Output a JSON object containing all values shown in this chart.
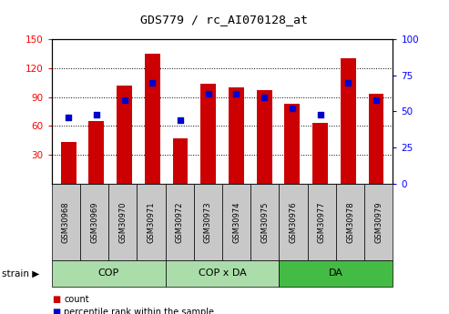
{
  "title": "GDS779 / rc_AI070128_at",
  "categories": [
    "GSM30968",
    "GSM30969",
    "GSM30970",
    "GSM30971",
    "GSM30972",
    "GSM30973",
    "GSM30974",
    "GSM30975",
    "GSM30976",
    "GSM30977",
    "GSM30978",
    "GSM30979"
  ],
  "counts": [
    43,
    65,
    102,
    135,
    47,
    104,
    100,
    97,
    83,
    63,
    130,
    93
  ],
  "percentile_ranks": [
    46,
    48,
    58,
    70,
    44,
    62,
    62,
    60,
    52,
    48,
    70,
    58
  ],
  "ylim_left": [
    0,
    150
  ],
  "ylim_right": [
    0,
    100
  ],
  "yticks_left": [
    30,
    60,
    90,
    120,
    150
  ],
  "yticks_right": [
    0,
    25,
    50,
    75,
    100
  ],
  "bar_color": "#CC0000",
  "dot_color": "#0000CC",
  "tick_label_bg": "#c8c8c8",
  "group_colors": [
    "#aaddaa",
    "#aaddaa",
    "#44bb44"
  ],
  "group_labels": [
    "COP",
    "COP x DA",
    "DA"
  ],
  "group_ranges": [
    [
      0,
      4
    ],
    [
      4,
      8
    ],
    [
      8,
      12
    ]
  ],
  "legend_items": [
    "count",
    "percentile rank within the sample"
  ],
  "strain_label": "strain"
}
